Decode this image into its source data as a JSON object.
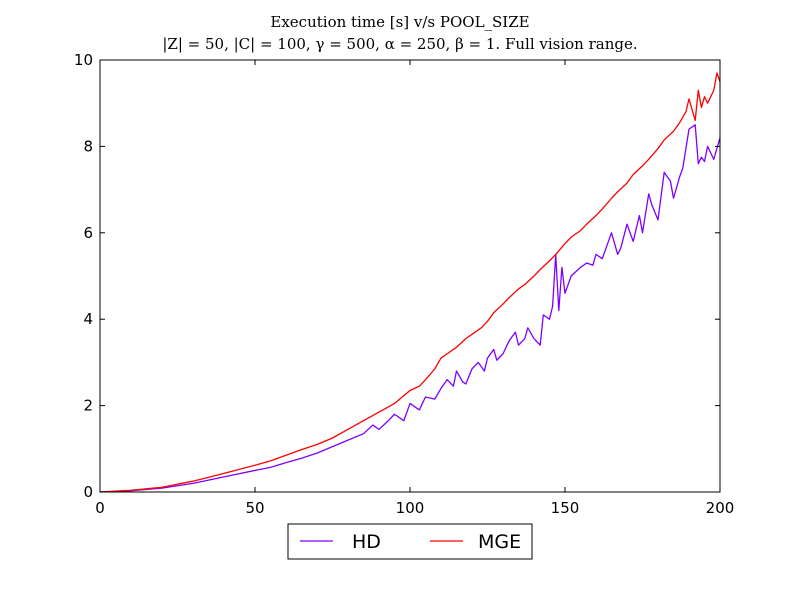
{
  "chart_data": {
    "type": "line",
    "title": "Execution time [s] v/s POOL_SIZE",
    "subtitle": "|Z| = 50, |C| = 100, γ = 500, α = 250, β = 1. Full vision range.",
    "xlabel": "",
    "ylabel": "",
    "xlim": [
      0,
      200
    ],
    "ylim": [
      0,
      10
    ],
    "x_ticks": [
      0,
      50,
      100,
      150,
      200
    ],
    "y_ticks": [
      0,
      2,
      4,
      6,
      8,
      10
    ],
    "grid": false,
    "legend": "bottom-center-outside",
    "series": [
      {
        "name": "HD",
        "color": "#7f00ff",
        "x": [
          0,
          10,
          20,
          30,
          40,
          50,
          55,
          60,
          65,
          70,
          75,
          80,
          85,
          88,
          90,
          93,
          95,
          98,
          100,
          103,
          105,
          108,
          110,
          112,
          114,
          115,
          117,
          118,
          120,
          122,
          124,
          125,
          127,
          128,
          130,
          132,
          134,
          135,
          137,
          138,
          140,
          142,
          143,
          145,
          146,
          147,
          148,
          149,
          150,
          152,
          155,
          157,
          159,
          160,
          162,
          165,
          167,
          168,
          170,
          172,
          174,
          175,
          177,
          178,
          180,
          182,
          184,
          185,
          187,
          188,
          190,
          192,
          193,
          194,
          195,
          196,
          198,
          200
        ],
        "y": [
          0.0,
          0.03,
          0.09,
          0.2,
          0.35,
          0.5,
          0.57,
          0.68,
          0.78,
          0.9,
          1.05,
          1.2,
          1.35,
          1.55,
          1.45,
          1.65,
          1.8,
          1.65,
          2.05,
          1.9,
          2.2,
          2.15,
          2.4,
          2.6,
          2.45,
          2.8,
          2.55,
          2.5,
          2.85,
          3.0,
          2.8,
          3.1,
          3.3,
          3.05,
          3.2,
          3.5,
          3.7,
          3.4,
          3.55,
          3.8,
          3.55,
          3.4,
          4.1,
          4.0,
          4.3,
          5.5,
          4.2,
          5.2,
          4.6,
          5.0,
          5.2,
          5.3,
          5.25,
          5.5,
          5.4,
          6.0,
          5.5,
          5.65,
          6.2,
          5.8,
          6.4,
          6.0,
          6.9,
          6.65,
          6.3,
          7.4,
          7.2,
          6.8,
          7.3,
          7.5,
          8.4,
          8.5,
          7.6,
          7.75,
          7.65,
          8.0,
          7.7,
          8.2
        ]
      },
      {
        "name": "MGE",
        "color": "#ff0000",
        "x": [
          0,
          10,
          20,
          30,
          40,
          50,
          55,
          60,
          65,
          70,
          75,
          80,
          85,
          90,
          95,
          100,
          103,
          105,
          108,
          110,
          112,
          115,
          118,
          120,
          123,
          125,
          127,
          130,
          132,
          135,
          137,
          140,
          142,
          145,
          147,
          150,
          152,
          155,
          157,
          160,
          162,
          165,
          167,
          170,
          172,
          175,
          177,
          180,
          182,
          185,
          187,
          189,
          190,
          192,
          193,
          194,
          195,
          196,
          198,
          199,
          200
        ],
        "y": [
          0.0,
          0.04,
          0.11,
          0.25,
          0.43,
          0.62,
          0.72,
          0.85,
          0.98,
          1.1,
          1.25,
          1.45,
          1.65,
          1.85,
          2.05,
          2.35,
          2.45,
          2.6,
          2.85,
          3.1,
          3.2,
          3.35,
          3.55,
          3.65,
          3.8,
          3.95,
          4.15,
          4.35,
          4.5,
          4.7,
          4.8,
          5.0,
          5.15,
          5.35,
          5.5,
          5.75,
          5.9,
          6.05,
          6.2,
          6.4,
          6.55,
          6.8,
          6.95,
          7.15,
          7.35,
          7.55,
          7.7,
          7.95,
          8.15,
          8.35,
          8.55,
          8.8,
          9.1,
          8.6,
          9.3,
          8.9,
          9.15,
          9.0,
          9.3,
          9.7,
          9.5
        ]
      }
    ]
  }
}
